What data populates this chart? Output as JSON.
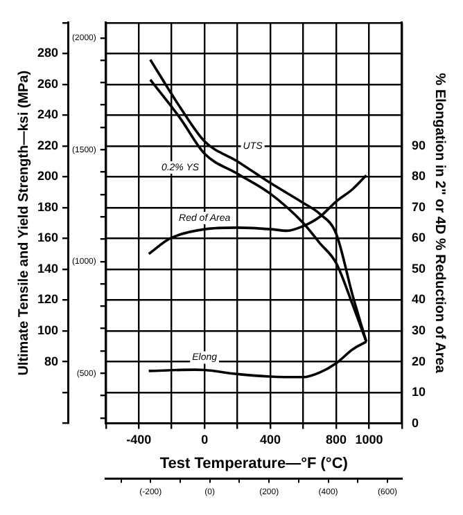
{
  "chart_data": {
    "type": "line",
    "xlabel": "Test Temperature—°F (°C)",
    "ylabel": "Ultimate Tensile and Yield Strength—ksi (MPa)",
    "y2label": "% Elongation in 2\" or 4D % Reduction of Area",
    "xlim": [
      -600,
      1200
    ],
    "xticks": [
      {
        "value": -600,
        "label": null
      },
      -400,
      {
        "value": -200,
        "label": null
      },
      0,
      {
        "value": 200,
        "label": null
      },
      400,
      {
        "value": 600,
        "label": null
      },
      800,
      1000,
      {
        "value": 1200,
        "label": null
      }
    ],
    "ylim": [
      40,
      300
    ],
    "yticks": [
      {
        "value": 40,
        "label": null
      },
      {
        "value": 60,
        "label": null
      },
      80,
      100,
      120,
      140,
      160,
      180,
      200,
      220,
      240,
      260,
      280,
      {
        "value": 300,
        "label": null
      }
    ],
    "y2lim": [
      0,
      130
    ],
    "y2ticks": [
      0,
      10,
      20,
      30,
      40,
      50,
      60,
      70,
      80,
      90
    ],
    "y3lim": [
      276,
      2068
    ],
    "y3ticks": [
      {
        "value": 300,
        "label": null
      },
      {
        "value": 400,
        "label": null
      },
      {
        "value": 500,
        "label": "(500)"
      },
      {
        "value": 600,
        "label": null
      },
      {
        "value": 700,
        "label": null
      },
      {
        "value": 800,
        "label": null
      },
      {
        "value": 900,
        "label": null
      },
      {
        "value": 1000,
        "label": "(1000)"
      },
      {
        "value": 1100,
        "label": null
      },
      {
        "value": 1200,
        "label": null
      },
      {
        "value": 1300,
        "label": null
      },
      {
        "value": 1400,
        "label": null
      },
      {
        "value": 1500,
        "label": "(1500)"
      },
      {
        "value": 1600,
        "label": null
      },
      {
        "value": 1700,
        "label": null
      },
      {
        "value": 1800,
        "label": null
      },
      {
        "value": 1900,
        "label": null
      },
      {
        "value": 2000,
        "label": "(2000)"
      }
    ],
    "x2lim": [
      -351,
      649
    ],
    "x2ticks": [
      {
        "value": -300,
        "label": null
      },
      {
        "value": -200,
        "label": "(-200)"
      },
      {
        "value": -100,
        "label": null
      },
      {
        "value": 0,
        "label": "(0)"
      },
      {
        "value": 100,
        "label": null
      },
      {
        "value": 200,
        "label": "(200)"
      },
      {
        "value": 300,
        "label": null
      },
      {
        "value": 400,
        "label": "(400)"
      },
      {
        "value": 500,
        "label": null
      },
      {
        "value": 600,
        "label": "(600)"
      }
    ],
    "grid": true,
    "legend": false,
    "marker": "none",
    "line_style": "solid",
    "series": [
      {
        "name": "UTS",
        "color": "#000000",
        "x": [
          -330,
          -148,
          0,
          200,
          400,
          600,
          700,
          800,
          900,
          983
        ],
        "values": [
          276,
          245,
          223,
          210,
          196,
          183,
          176,
          163,
          123,
          93
        ]
      },
      {
        "name": "0.2% YS",
        "color": "#000000",
        "x": [
          -330,
          -148,
          0,
          200,
          400,
          600,
          700,
          800,
          900,
          983
        ],
        "values": [
          263,
          238,
          215,
          202,
          189,
          170,
          157,
          144,
          117,
          93
        ]
      },
      {
        "name": "Red of Area",
        "axis": "y2",
        "color": "#000000",
        "x": [
          -339,
          -209,
          0,
          200,
          400,
          500,
          600,
          700,
          800,
          900,
          983
        ],
        "values": [
          55,
          60,
          63,
          63.5,
          63,
          62.5,
          64,
          67,
          72,
          76,
          80.5
        ]
      },
      {
        "name": "Elong",
        "axis": "y2",
        "color": "#000000",
        "x": [
          -339,
          -61,
          0,
          200,
          400,
          600,
          700,
          800,
          900,
          983
        ],
        "values": [
          17,
          17.4,
          17.3,
          16,
          15.2,
          15,
          16.5,
          19.5,
          24,
          26.5
        ]
      }
    ]
  }
}
